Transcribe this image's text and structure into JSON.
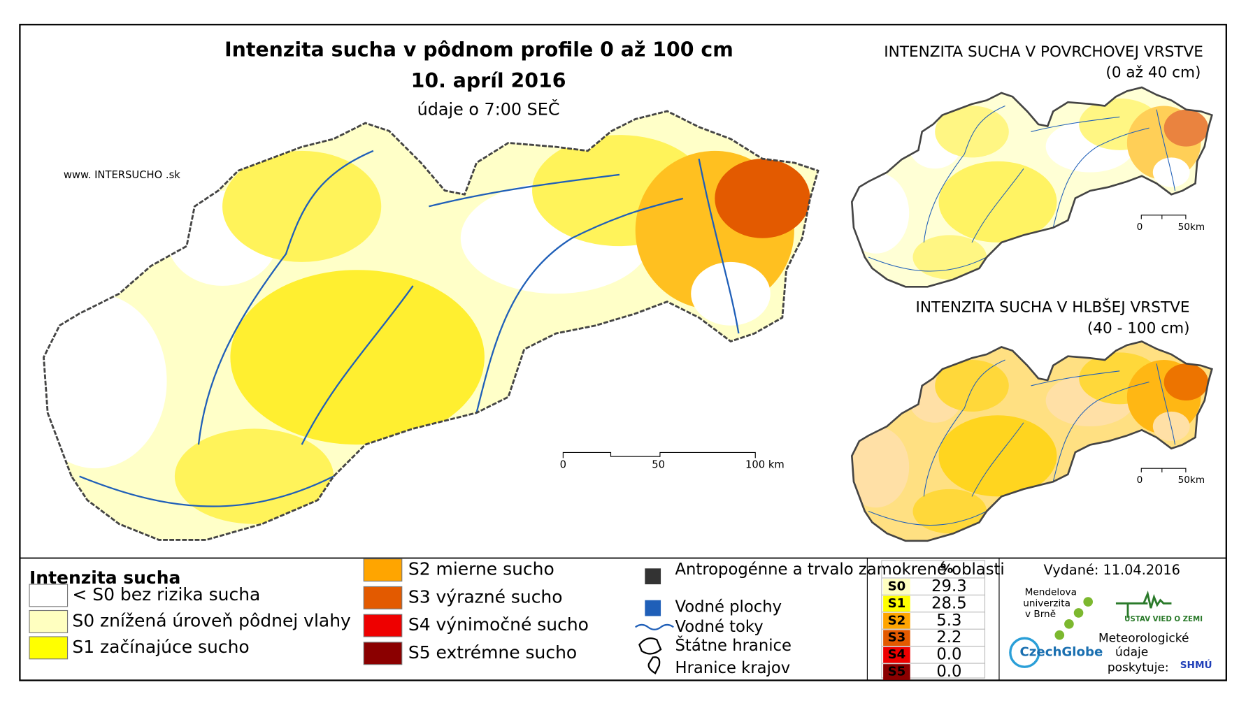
{
  "header": {
    "title": "Intenzita sucha v pôdnom profile 0 až 100 cm",
    "date": "10. apríl 2016",
    "time_note": "údaje o 7:00 SEČ",
    "website": "www. INTERSUCHO .sk"
  },
  "insets": [
    {
      "title": "INTENZITA SUCHA V POVRCHOVEJ VRSTVE",
      "subtitle": "(0 až 40 cm)",
      "scale": [
        "0",
        "50km"
      ]
    },
    {
      "title": "INTENZITA SUCHA V HLBŠEJ VRSTVE",
      "subtitle": "(40 - 100 cm)",
      "scale": [
        "0",
        "50km"
      ]
    }
  ],
  "scale_bar": [
    "0",
    "50",
    "100 km"
  ],
  "legend": {
    "title": "Intenzita sucha",
    "items": [
      {
        "label": "< S0 bez rizika sucha",
        "color": "#ffffff"
      },
      {
        "label": "S0 znížená úroveň pôdnej vlahy",
        "color": "#ffffc0"
      },
      {
        "label": "S1 začínajúce sucho",
        "color": "#ffff00"
      },
      {
        "label": "S2 mierne sucho",
        "color": "#ffa500"
      },
      {
        "label": "S3 výrazné sucho",
        "color": "#e35a00"
      },
      {
        "label": "S4 výnimočné sucho",
        "color": "#ee0000"
      },
      {
        "label": "S5 extrémne sucho",
        "color": "#8b0000"
      }
    ]
  },
  "symbols": [
    "Antropogénne a trvalo zamokrené oblasti",
    "Vodné plochy",
    "Vodné toky",
    "Štátne hranice",
    "Hranice krajov"
  ],
  "stats": {
    "header": "%",
    "rows": [
      {
        "code": "S0",
        "value": "29.3",
        "color": "#ffffc0"
      },
      {
        "code": "S1",
        "value": "28.5",
        "color": "#ffff00"
      },
      {
        "code": "S2",
        "value": "5.3",
        "color": "#ffa500"
      },
      {
        "code": "S3",
        "value": "2.2",
        "color": "#e35a00"
      },
      {
        "code": "S4",
        "value": "0.0",
        "color": "#ee0000"
      },
      {
        "code": "S5",
        "value": "0.0",
        "color": "#8b0000"
      }
    ]
  },
  "issued": "Vydané: 11.04.2016",
  "logos": {
    "mendel": [
      "Mendelova",
      "univerzita",
      "v Brně"
    ],
    "czechglobe": "CzechGlobe",
    "ustav": "ÚSTAV VIED O ZEMI",
    "provider": [
      "Meteorologické",
      "údaje",
      "poskytuje:"
    ],
    "shmu": "SHMÚ"
  }
}
